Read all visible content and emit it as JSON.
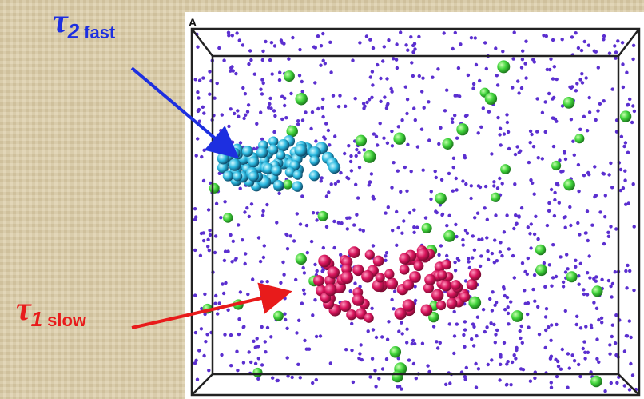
{
  "panel_label": "A",
  "annotations": [
    {
      "symbol": "τ",
      "subscript": "2",
      "text": "fast"
    },
    {
      "symbol": "τ",
      "subscript": "1",
      "text": "slow"
    }
  ]
}
